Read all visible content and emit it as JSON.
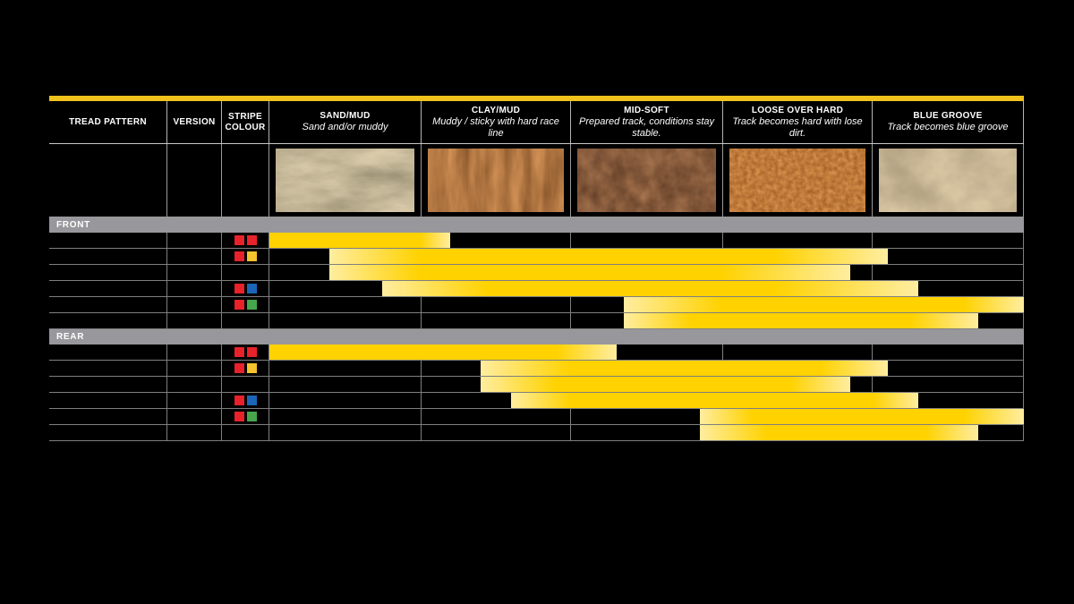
{
  "page": {
    "background": "#000000"
  },
  "accent": {
    "top_bar_color": "#f2c21c"
  },
  "header": {
    "columns": [
      {
        "label": "TREAD PATTERN",
        "subtitle": ""
      },
      {
        "label": "VERSION",
        "subtitle": ""
      },
      {
        "label": "STRIPE COLOUR",
        "subtitle": ""
      },
      {
        "label": "SAND/MUD",
        "subtitle": "Sand and/or muddy",
        "photo_icon": "sand-texture"
      },
      {
        "label": "CLAY/MUD",
        "subtitle": "Muddy / sticky with hard race line",
        "photo_icon": "clay-texture"
      },
      {
        "label": "MID-SOFT",
        "subtitle": "Prepared track, conditions stay stable.",
        "photo_icon": "mid-soft-texture"
      },
      {
        "label": "LOOSE OVER HARD",
        "subtitle": "Track becomes hard with lose dirt.",
        "photo_icon": "loose-dirt-texture"
      },
      {
        "label": "BLUE GROOVE",
        "subtitle": "Track becomes blue groove",
        "photo_icon": "blue-groove-texture"
      }
    ]
  },
  "colors": {
    "bar_solid": "#ffd200",
    "bar_tip": "#ffeda0",
    "grid_line": "#7f7f7f",
    "section_bar_bg": "#98979b",
    "section_text": "#ffffff",
    "stripe_palette": {
      "red": "#e8222b",
      "yellow": "#f6c22d",
      "blue": "#1b65b7",
      "green": "#47a64b"
    }
  },
  "chart_data": {
    "type": "table",
    "title": "Tyre tread pattern terrain suitability chart",
    "terrain_categories": [
      "SAND/MUD",
      "CLAY/MUD",
      "MID-SOFT",
      "LOOSE OVER HARD",
      "BLUE GROOVE"
    ],
    "scale_note": "range_pct and solid_pct are % across the terrain spectrum, 0 = sand/mud end, 100 = blue groove end; solid_pct is the fully saturated (optimal) span, the remainder fades out",
    "sections": [
      {
        "label": "FRONT",
        "rows": [
          {
            "stripe_colours": [
              "red",
              "red"
            ],
            "range_pct": [
              0,
              24
            ],
            "solid_pct": [
              0,
              20
            ]
          },
          {
            "stripe_colours": [
              "red",
              "yellow"
            ],
            "range_pct": [
              8,
              82
            ],
            "solid_pct": [
              20,
              67
            ]
          },
          {
            "stripe_colours": [],
            "range_pct": [
              8,
              77
            ],
            "solid_pct": [
              20,
              60
            ]
          },
          {
            "stripe_colours": [
              "red",
              "blue"
            ],
            "range_pct": [
              15,
              86
            ],
            "solid_pct": [
              29,
              67
            ]
          },
          {
            "stripe_colours": [
              "red",
              "green"
            ],
            "range_pct": [
              47,
              100
            ],
            "solid_pct": [
              60,
              92
            ]
          },
          {
            "stripe_colours": [],
            "range_pct": [
              47,
              94
            ],
            "solid_pct": [
              56,
              85
            ]
          }
        ]
      },
      {
        "label": "REAR",
        "rows": [
          {
            "stripe_colours": [
              "red",
              "red"
            ],
            "range_pct": [
              0,
              46
            ],
            "solid_pct": [
              0,
              38
            ]
          },
          {
            "stripe_colours": [
              "red",
              "yellow"
            ],
            "range_pct": [
              28,
              82
            ],
            "solid_pct": [
              40,
              73
            ]
          },
          {
            "stripe_colours": [],
            "range_pct": [
              28,
              77
            ],
            "solid_pct": [
              38,
              69
            ]
          },
          {
            "stripe_colours": [
              "red",
              "blue"
            ],
            "range_pct": [
              32,
              86
            ],
            "solid_pct": [
              40,
              80
            ]
          },
          {
            "stripe_colours": [
              "red",
              "green"
            ],
            "range_pct": [
              57,
              100
            ],
            "solid_pct": [
              64,
              92
            ]
          },
          {
            "stripe_colours": [],
            "range_pct": [
              57,
              94
            ],
            "solid_pct": [
              66,
              87
            ]
          }
        ]
      }
    ]
  }
}
